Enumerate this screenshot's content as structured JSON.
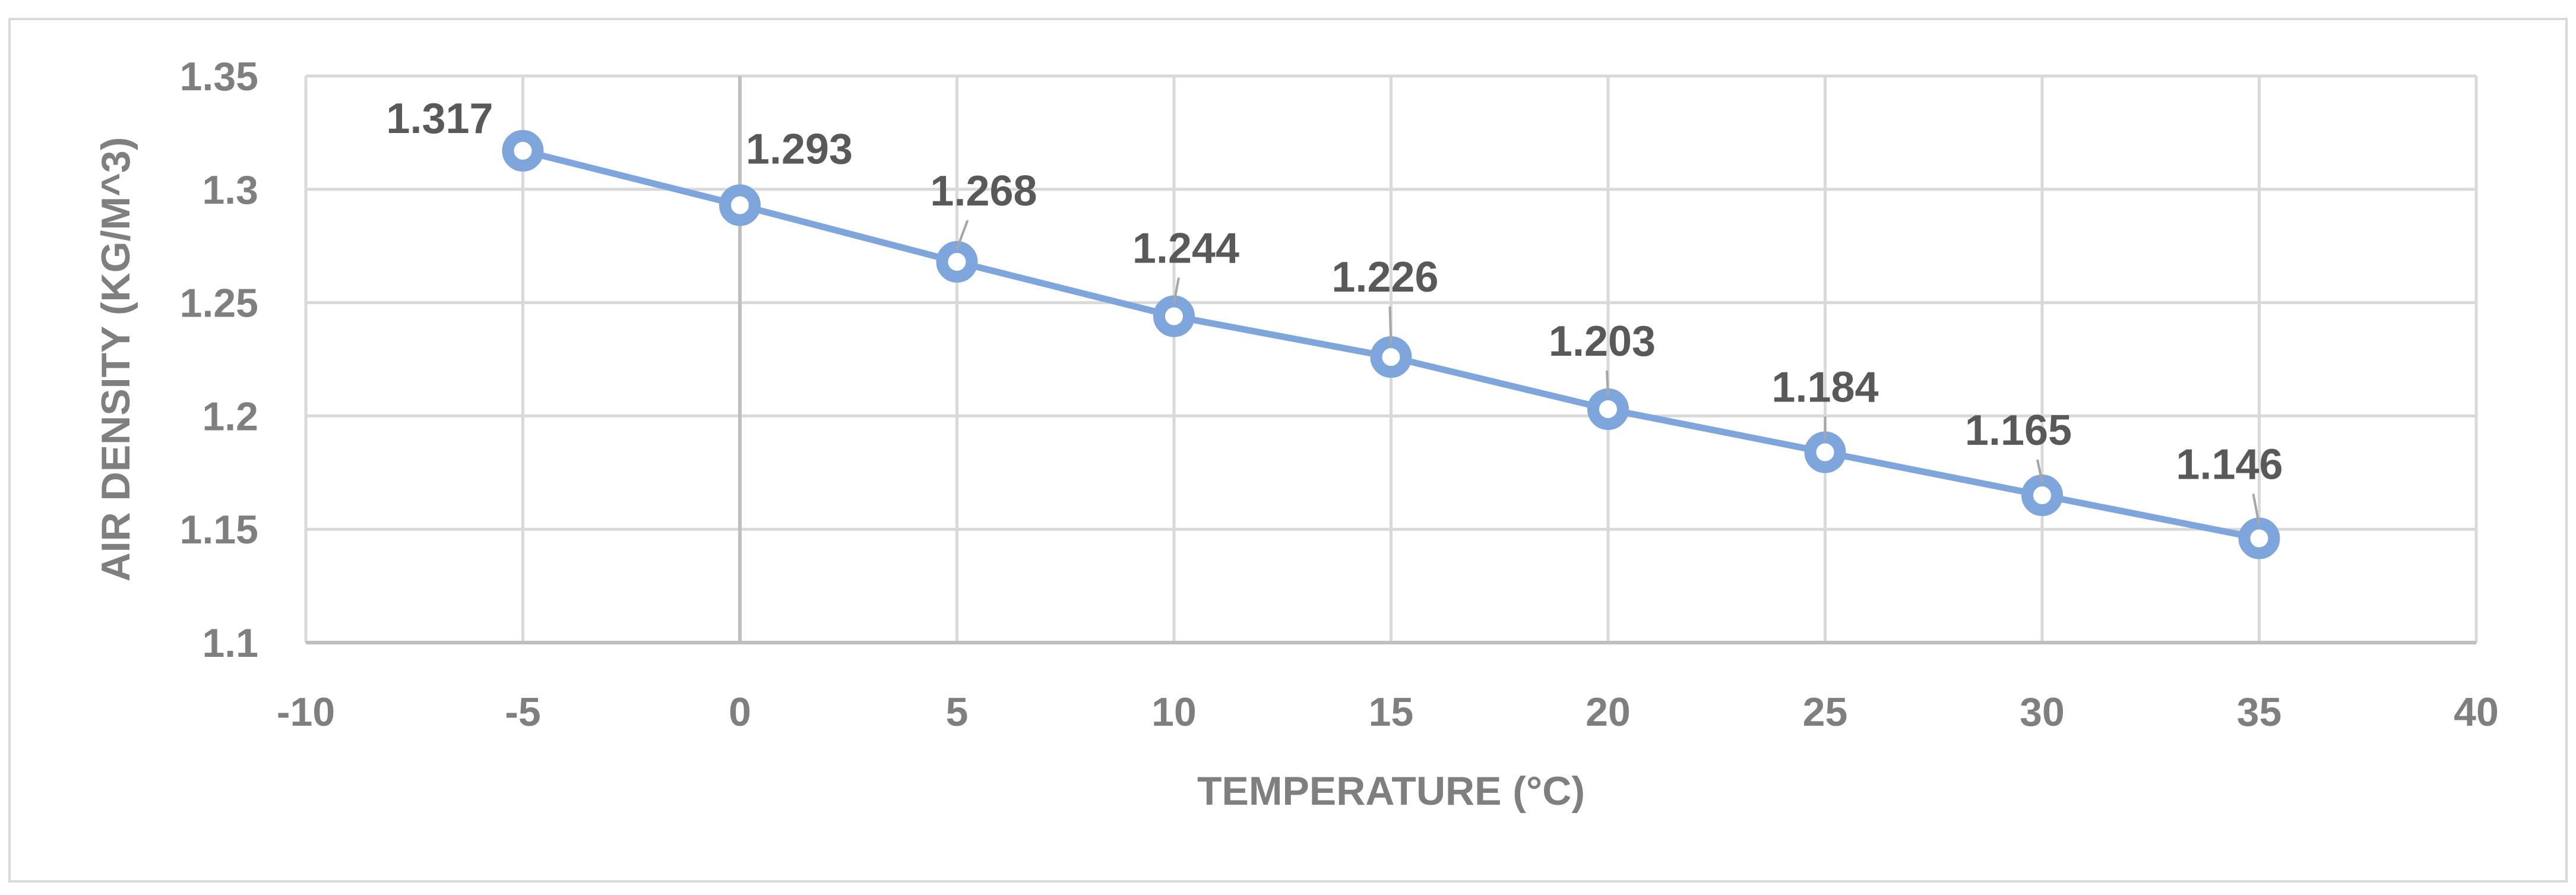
{
  "chart_data": {
    "type": "scatter",
    "mode": "lines+markers",
    "xlabel": "TEMPERATURE (°C)",
    "ylabel": "AIR DENSITY (KG/M^3)",
    "xlim": [
      -10,
      40
    ],
    "ylim": [
      1.1,
      1.35
    ],
    "xticks": [
      -10,
      -5,
      0,
      5,
      10,
      15,
      20,
      25,
      30,
      35,
      40
    ],
    "yticks": [
      1.1,
      1.15,
      1.2,
      1.25,
      1.3,
      1.35
    ],
    "xtick_labels": [
      "-10",
      "-5",
      "0",
      "5",
      "10",
      "15",
      "20",
      "25",
      "30",
      "35",
      "40"
    ],
    "ytick_labels": [
      "1.1",
      "1.15",
      "1.2",
      "1.25",
      "1.3",
      "1.35"
    ],
    "grid": true,
    "legend": "none",
    "series": [
      {
        "x": [
          -5,
          0,
          5,
          10,
          15,
          20,
          25,
          30,
          35
        ],
        "y": [
          1.317,
          1.293,
          1.268,
          1.244,
          1.226,
          1.203,
          1.184,
          1.165,
          1.146
        ],
        "labels": [
          "1.317",
          "1.293",
          "1.268",
          "1.244",
          "1.226",
          "1.203",
          "1.184",
          "1.165",
          "1.146"
        ],
        "color": "#7ea6dc"
      }
    ],
    "colors": {
      "grid": "#d9d9d9",
      "text": "#7f7f7f",
      "label": "#595959",
      "series": "#7ea6dc"
    }
  }
}
